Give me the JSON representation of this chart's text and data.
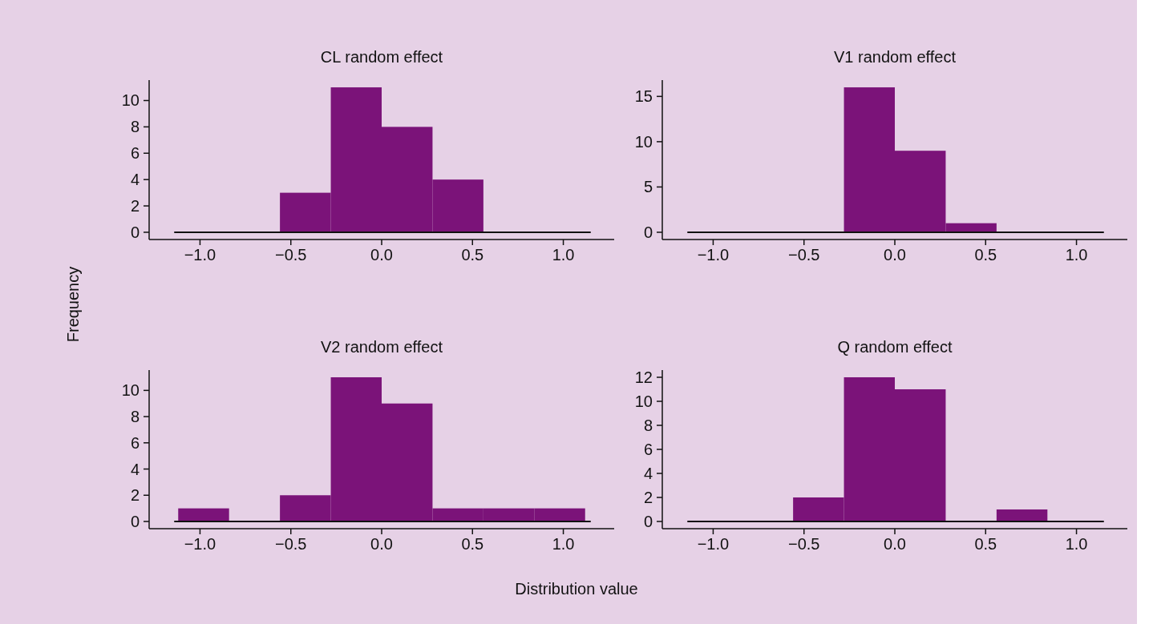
{
  "chart_data": [
    {
      "type": "histogram",
      "title": "CL random effect",
      "ylabel": "Frequency",
      "bins": [
        -1.12,
        -0.84,
        -0.56,
        -0.28,
        0,
        0.28,
        0.56,
        0.84,
        1.12
      ],
      "values": [
        0,
        0,
        3,
        11,
        8,
        4,
        0,
        0
      ],
      "color": "#7b1379",
      "xlim": [
        -1.28,
        1.28
      ],
      "ylim": [
        -0.55,
        11.55
      ],
      "xticks": [
        {
          "value": -1,
          "label": "−1.0"
        },
        {
          "value": -0.5,
          "label": "−0.5"
        },
        {
          "value": 0,
          "label": "0.0"
        },
        {
          "value": 0.5,
          "label": "0.5"
        },
        {
          "value": 1,
          "label": "1.0"
        }
      ],
      "yticks": [
        0,
        2,
        4,
        6,
        8,
        10
      ],
      "ref_lines": [
        {
          "axis": "y",
          "value": 0,
          "color": "#111111"
        }
      ],
      "grid": false
    },
    {
      "type": "histogram",
      "title": "V1 random effect",
      "bins": [
        -1.12,
        -0.84,
        -0.56,
        -0.28,
        0,
        0.28,
        0.56,
        0.84,
        1.12
      ],
      "values": [
        0,
        0,
        0,
        16,
        9,
        1,
        0,
        0
      ],
      "color": "#7b1379",
      "xlim": [
        -1.28,
        1.28
      ],
      "ylim": [
        -0.8,
        16.8
      ],
      "xticks": [
        {
          "value": -1,
          "label": "−1.0"
        },
        {
          "value": -0.5,
          "label": "−0.5"
        },
        {
          "value": 0,
          "label": "0.0"
        },
        {
          "value": 0.5,
          "label": "0.5"
        },
        {
          "value": 1,
          "label": "1.0"
        }
      ],
      "yticks": [
        0,
        5,
        10,
        15
      ],
      "ref_lines": [
        {
          "axis": "y",
          "value": 0,
          "color": "#111111"
        }
      ],
      "grid": false
    },
    {
      "type": "histogram",
      "title": "V2 random effect",
      "xlabel": "Distribution value",
      "bins": [
        -1.12,
        -0.84,
        -0.56,
        -0.28,
        0,
        0.28,
        0.56,
        0.84,
        1.12
      ],
      "values": [
        1,
        0,
        2,
        11,
        9,
        1,
        1,
        1
      ],
      "color": "#7b1379",
      "xlim": [
        -1.28,
        1.28
      ],
      "ylim": [
        -0.55,
        11.55
      ],
      "xticks": [
        {
          "value": -1,
          "label": "−1.0"
        },
        {
          "value": -0.5,
          "label": "−0.5"
        },
        {
          "value": 0,
          "label": "0.0"
        },
        {
          "value": 0.5,
          "label": "0.5"
        },
        {
          "value": 1,
          "label": "1.0"
        }
      ],
      "yticks": [
        0,
        2,
        4,
        6,
        8,
        10
      ],
      "ref_lines": [
        {
          "axis": "y",
          "value": 0,
          "color": "#111111"
        }
      ],
      "grid": false
    },
    {
      "type": "histogram",
      "title": "Q random effect",
      "bins": [
        -1.12,
        -0.84,
        -0.56,
        -0.28,
        0,
        0.28,
        0.56,
        0.84,
        1.12
      ],
      "values": [
        0,
        0,
        2,
        12,
        11,
        0,
        1,
        0
      ],
      "color": "#7b1379",
      "xlim": [
        -1.28,
        1.28
      ],
      "ylim": [
        -0.6,
        12.6
      ],
      "xticks": [
        {
          "value": -1,
          "label": "−1.0"
        },
        {
          "value": -0.5,
          "label": "−0.5"
        },
        {
          "value": 0,
          "label": "0.0"
        },
        {
          "value": 0.5,
          "label": "0.5"
        },
        {
          "value": 1,
          "label": "1.0"
        }
      ],
      "yticks": [
        0,
        2,
        4,
        6,
        8,
        10,
        12
      ],
      "ref_lines": [
        {
          "axis": "y",
          "value": 0,
          "color": "#111111"
        }
      ],
      "grid": false
    }
  ]
}
